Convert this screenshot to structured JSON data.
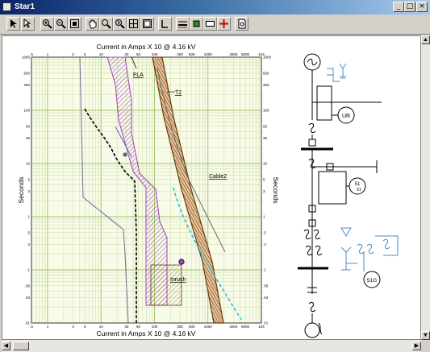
{
  "window": {
    "title": "Star1",
    "minimize_glyph": "_",
    "maximize_glyph": "□",
    "close_glyph": "×"
  },
  "toolbar": {
    "tools": [
      "pointer-tool",
      "select-tool",
      "zoom-in-tool",
      "zoom-out-tool",
      "zoom-fit-tool",
      "pan-tool",
      "zoom-window-tool",
      "zoom-previous-tool",
      "grid-tool",
      "frame-tool",
      "text-tool",
      "line-style-tool",
      "fill-color-tool",
      "border-tool",
      "add-device-tool",
      "print-preview-tool"
    ]
  },
  "plot": {
    "top_axis_title": "Current in Amps  X 10 @ 4.16 kV",
    "bottom_axis_title": "Current in Amps  X 10 @ 4.16 kV",
    "left_axis_title": "Seconds",
    "right_axis_title": "Seconds",
    "x_ticks": [
      ".5",
      "1",
      "3",
      "5",
      "10",
      "30",
      "50",
      "100",
      "300",
      "500",
      "1000",
      "3000",
      "5000",
      "10^4"
    ],
    "y_ticks": [
      "1000",
      "500",
      "300",
      "100",
      "50",
      "30",
      "10",
      "5",
      "3",
      "1",
      ".5",
      ".3",
      ".1",
      ".05",
      ".03",
      ".01"
    ],
    "x_range": [
      0.5,
      10000
    ],
    "y_range": [
      0.01,
      1000
    ],
    "x_scale": "log",
    "y_scale": "log",
    "grid": true,
    "labels": {
      "fla": "FLA",
      "t2": "T2",
      "cable2": "Cable2",
      "inrush": "Inrush"
    }
  },
  "oneline": {
    "relay_ur": "UR",
    "relay_51": "51",
    "relay_51_sub": "51",
    "relay_51g": "51G"
  },
  "colors": {
    "title_start": "#0a246a",
    "title_end": "#a6caf0",
    "grid": "#c9dba0",
    "grid_major": "#9fbf6a",
    "fuse": "#a040c0",
    "cable": "#b06a2a",
    "relay_curve": "#22c0e0",
    "oneline": "#4a8cc8"
  }
}
